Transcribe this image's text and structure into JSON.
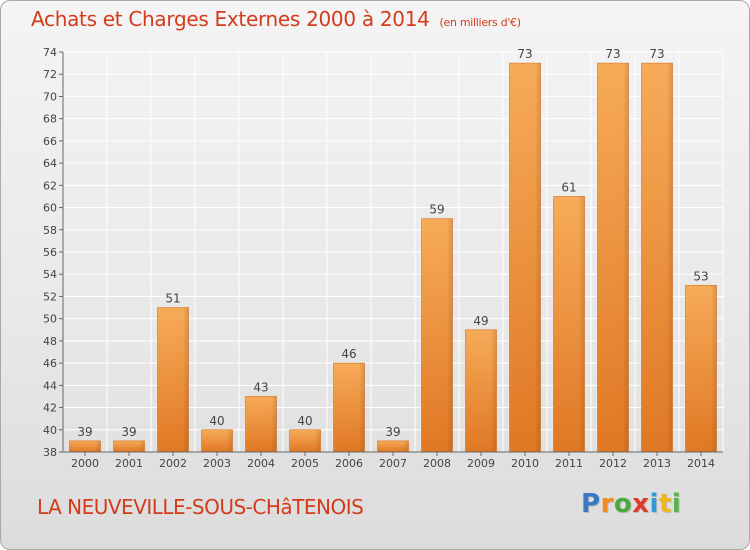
{
  "title": {
    "main": "Achats et Charges Externes 2000 à 2014",
    "unit": "(en milliers d'€)"
  },
  "place_name": "LA NEUVEVILLE-SOUS-CHâTENOIS",
  "logo": {
    "text": "Proxiti",
    "letter_colors": [
      "#3a77c5",
      "#f08a1d",
      "#4aa83c",
      "#e23a2a",
      "#2f9ad6",
      "#f2b51c",
      "#58b247"
    ]
  },
  "colors": {
    "accent": "#d33b1b",
    "bar_light": "#f6a552",
    "bar_dark": "#e27b26",
    "grid": "#ffffff",
    "axis": "#555555"
  },
  "chart_data": {
    "type": "bar",
    "title": "Achats et Charges Externes 2000 à 2014",
    "xlabel": "",
    "ylabel": "",
    "categories": [
      "2000",
      "2001",
      "2002",
      "2003",
      "2004",
      "2005",
      "2006",
      "2007",
      "2008",
      "2009",
      "2010",
      "2011",
      "2012",
      "2013",
      "2014"
    ],
    "values": [
      39,
      39,
      51,
      40,
      43,
      40,
      46,
      39,
      59,
      49,
      73,
      61,
      73,
      73,
      53
    ],
    "ylim": [
      38,
      74
    ],
    "yticks": [
      38,
      40,
      42,
      44,
      46,
      48,
      50,
      52,
      54,
      56,
      58,
      60,
      62,
      64,
      66,
      68,
      70,
      72,
      74
    ],
    "grid": true,
    "legend": "none"
  }
}
